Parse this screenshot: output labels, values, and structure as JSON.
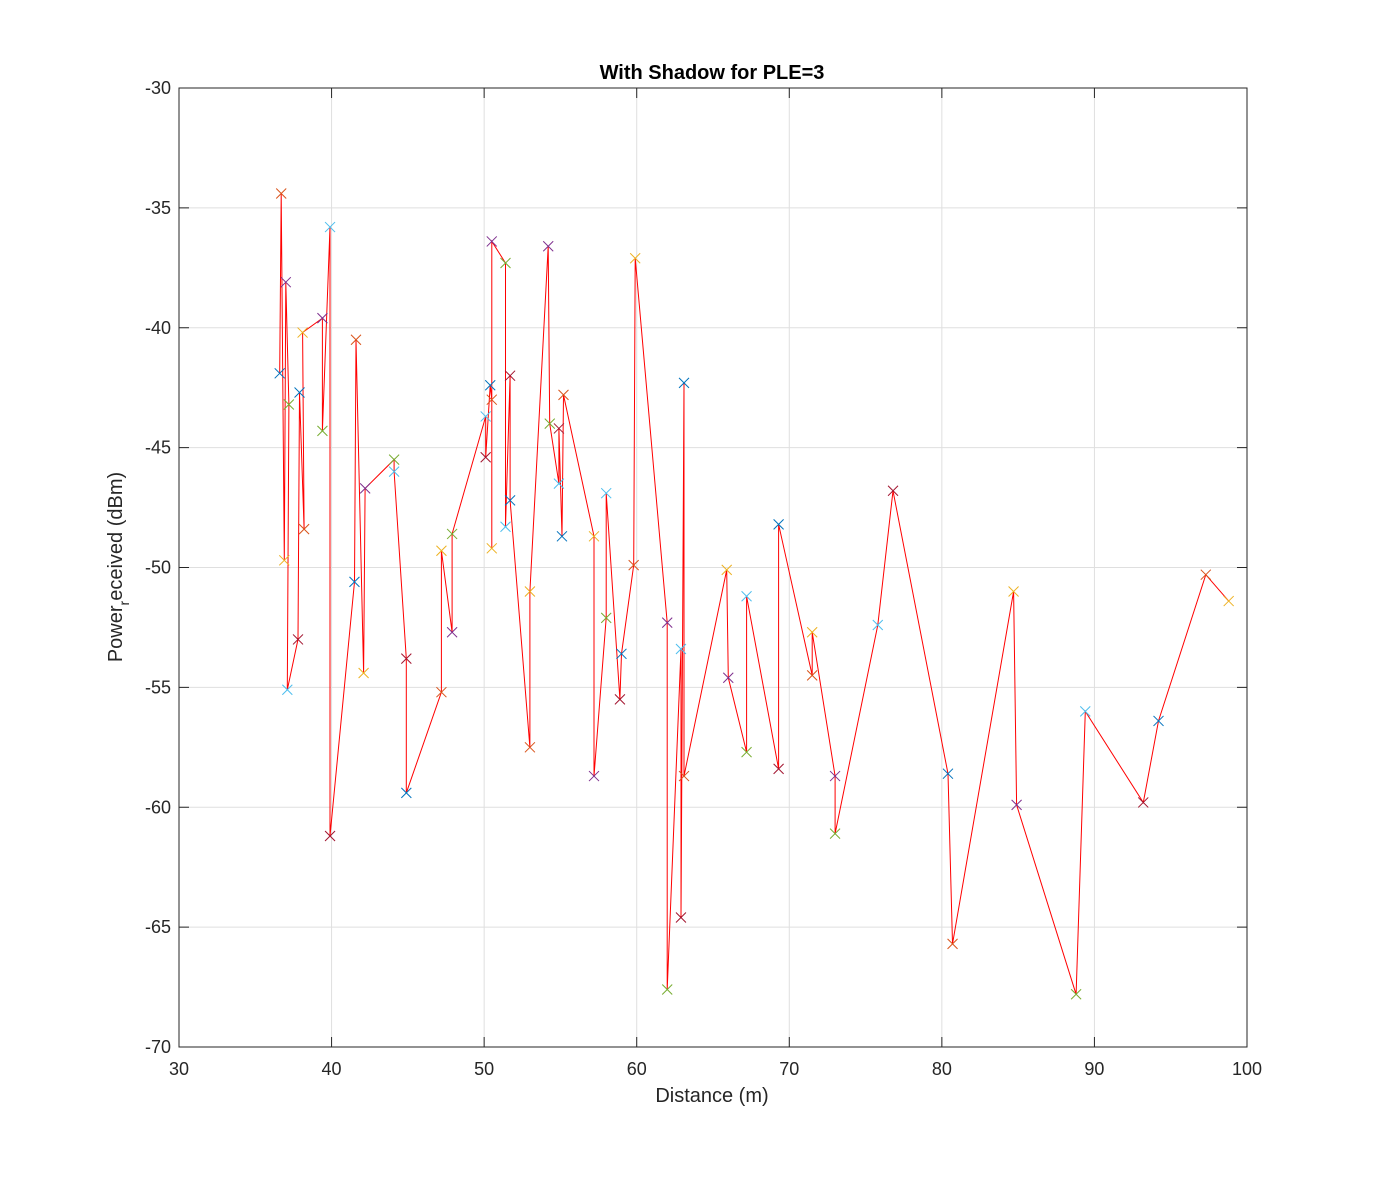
{
  "chart_data": {
    "type": "line",
    "title": "With Shadow for PLE=3",
    "xlabel": "Distance (m)",
    "ylabel": {
      "main": "Power",
      "sub": "r",
      "rest": "eceived (dBm)"
    },
    "xlim": [
      30,
      100
    ],
    "ylim": [
      -70,
      -30
    ],
    "xticks": [
      30,
      40,
      50,
      60,
      70,
      80,
      90,
      100
    ],
    "yticks": [
      -30,
      -35,
      -40,
      -45,
      -50,
      -55,
      -60,
      -65,
      -70
    ],
    "grid": true,
    "line_color": "#ff0000",
    "marker": "x",
    "marker_colors": [
      "#0072bd",
      "#d95319",
      "#edb120",
      "#7e2f8e",
      "#77ac30",
      "#4dbeee",
      "#a2142f"
    ],
    "series": [
      {
        "points": [
          [
            36.6,
            -41.9
          ],
          [
            36.7,
            -34.4
          ],
          [
            36.9,
            -49.7
          ],
          [
            37.0,
            -38.1
          ],
          [
            37.2,
            -43.2
          ],
          [
            37.1,
            -55.1
          ],
          [
            37.8,
            -53.0
          ],
          [
            37.9,
            -42.7
          ],
          [
            38.2,
            -48.4
          ],
          [
            38.1,
            -40.2
          ],
          [
            39.4,
            -39.6
          ],
          [
            39.4,
            -44.3
          ],
          [
            39.9,
            -35.8
          ],
          [
            39.9,
            -61.2
          ],
          [
            41.5,
            -50.6
          ],
          [
            41.6,
            -40.5
          ],
          [
            42.1,
            -54.4
          ],
          [
            42.2,
            -46.7
          ],
          [
            44.1,
            -45.5
          ],
          [
            44.1,
            -46.0
          ],
          [
            44.9,
            -53.8
          ],
          [
            44.9,
            -59.4
          ],
          [
            47.2,
            -55.2
          ],
          [
            47.2,
            -49.3
          ],
          [
            47.9,
            -52.7
          ],
          [
            47.9,
            -48.6
          ],
          [
            50.1,
            -43.7
          ],
          [
            50.1,
            -45.4
          ],
          [
            50.4,
            -42.4
          ],
          [
            50.5,
            -43.0
          ],
          [
            50.5,
            -49.2
          ],
          [
            50.5,
            -36.4
          ],
          [
            51.4,
            -37.3
          ],
          [
            51.4,
            -48.3
          ],
          [
            51.7,
            -42.0
          ],
          [
            51.7,
            -47.2
          ],
          [
            53.0,
            -57.5
          ],
          [
            53.0,
            -51.0
          ],
          [
            54.2,
            -36.6
          ],
          [
            54.3,
            -44.0
          ],
          [
            54.9,
            -46.5
          ],
          [
            54.9,
            -44.2
          ],
          [
            55.1,
            -48.7
          ],
          [
            55.2,
            -42.8
          ],
          [
            57.2,
            -48.7
          ],
          [
            57.2,
            -58.7
          ],
          [
            58.0,
            -52.1
          ],
          [
            58.0,
            -46.9
          ],
          [
            58.9,
            -55.5
          ],
          [
            59.0,
            -53.6
          ],
          [
            59.8,
            -49.9
          ],
          [
            59.9,
            -37.1
          ],
          [
            62.0,
            -52.3
          ],
          [
            62.0,
            -67.6
          ],
          [
            62.9,
            -53.4
          ],
          [
            62.9,
            -64.6
          ],
          [
            63.1,
            -42.3
          ],
          [
            63.1,
            -58.7
          ],
          [
            65.9,
            -50.1
          ],
          [
            66.0,
            -54.6
          ],
          [
            67.2,
            -57.7
          ],
          [
            67.2,
            -51.2
          ],
          [
            69.3,
            -58.4
          ],
          [
            69.3,
            -48.2
          ],
          [
            71.5,
            -54.5
          ],
          [
            71.5,
            -52.7
          ],
          [
            73.0,
            -58.7
          ],
          [
            73.0,
            -61.1
          ],
          [
            75.8,
            -52.4
          ],
          [
            76.8,
            -46.8
          ],
          [
            80.4,
            -58.6
          ],
          [
            80.7,
            -65.7
          ],
          [
            84.7,
            -51.0
          ],
          [
            84.9,
            -59.9
          ],
          [
            88.8,
            -67.8
          ],
          [
            89.4,
            -56.0
          ],
          [
            93.2,
            -59.8
          ],
          [
            94.2,
            -56.4
          ],
          [
            97.3,
            -50.3
          ],
          [
            98.8,
            -51.4
          ]
        ]
      }
    ]
  }
}
